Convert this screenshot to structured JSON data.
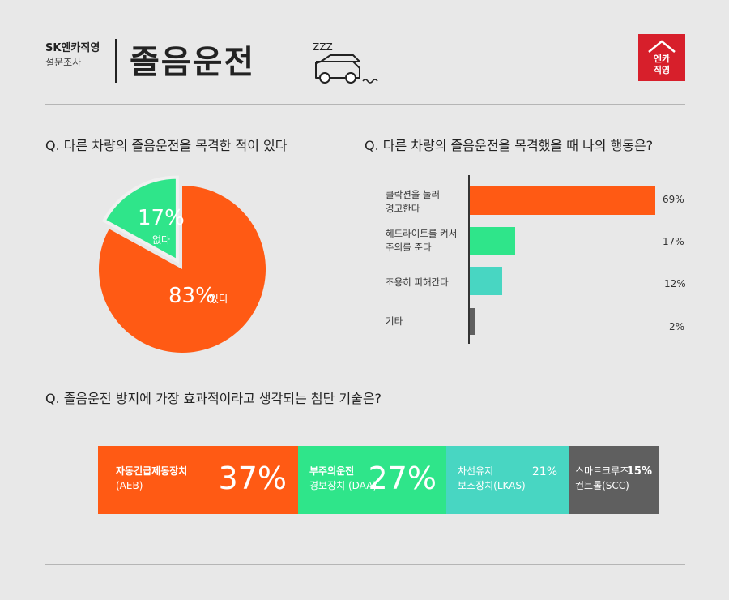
{
  "header": {
    "brand": "SK엔카직영",
    "subtitle": "설문조사",
    "title": "졸음운전",
    "zzz": "ZZZ",
    "logo_line1": "엔카",
    "logo_line2": "직영"
  },
  "colors": {
    "orange": "#ff5a14",
    "green": "#2fe58a",
    "teal": "#48d6c2",
    "gray": "#5f5f5f",
    "red_logo": "#d71f2b"
  },
  "chart_data": [
    {
      "type": "pie",
      "question": "Q. 다른 차량의 졸음운전을 목격한 적이 있다",
      "slices": [
        {
          "label": "있다",
          "value": 83,
          "display": "83%",
          "color": "#ff5a14"
        },
        {
          "label": "없다",
          "value": 17,
          "display": "17%",
          "color": "#2fe58a"
        }
      ]
    },
    {
      "type": "bar",
      "orientation": "horizontal",
      "question": "Q. 다른 차량의 졸음운전을 목격했을 때 나의 행동은?",
      "categories": [
        {
          "line1": "클락션을 눌러",
          "line2": "경고한다"
        },
        {
          "line1": "헤드라이트를 켜서",
          "line2": "주의를 준다"
        },
        {
          "line1": "조용히 피해간다",
          "line2": ""
        },
        {
          "line1": "기타",
          "line2": ""
        }
      ],
      "values": [
        69,
        17,
        12,
        2
      ],
      "display": [
        "69%",
        "17%",
        "12%",
        "2%"
      ],
      "colors": [
        "#ff5a14",
        "#2fe58a",
        "#48d6c2",
        "#5f5f5f"
      ]
    },
    {
      "type": "bar",
      "orientation": "stacked-horizontal",
      "question": "Q. 졸음운전 방지에 가장 효과적이라고 생각되는 첨단 기술은?",
      "segments": [
        {
          "name": "자동긴급제동장치",
          "sub": "(AEB)",
          "value": 37,
          "display": "37%",
          "color": "#ff5a14"
        },
        {
          "name": "부주의운전",
          "sub": "경보장치 (DAA)",
          "value": 27,
          "display": "27%",
          "color": "#2fe58a"
        },
        {
          "name": "차선유지",
          "sub": "보조장치(LKAS)",
          "value": 21,
          "display": "21%",
          "color": "#48d6c2"
        },
        {
          "name": "스마트크루즈",
          "sub": "컨트롤(SCC)",
          "value": 15,
          "display": "15%",
          "color": "#5f5f5f"
        }
      ]
    }
  ]
}
